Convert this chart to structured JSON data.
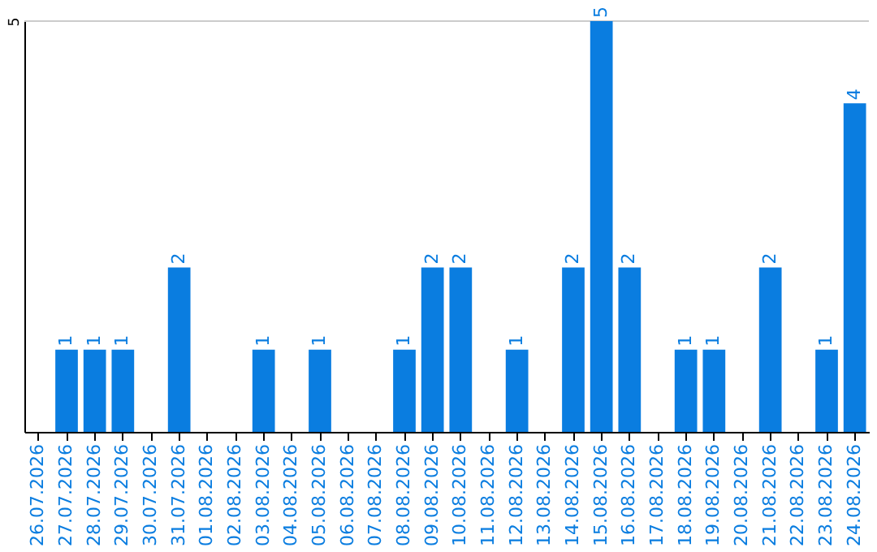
{
  "chart_data": {
    "type": "bar",
    "categories": [
      "26.07.2026",
      "27.07.2026",
      "28.07.2026",
      "29.07.2026",
      "30.07.2026",
      "31.07.2026",
      "01.08.2026",
      "02.08.2026",
      "03.08.2026",
      "04.08.2026",
      "05.08.2026",
      "06.08.2026",
      "07.08.2026",
      "08.08.2026",
      "09.08.2026",
      "10.08.2026",
      "11.08.2026",
      "12.08.2026",
      "13.08.2026",
      "14.08.2026",
      "15.08.2026",
      "16.08.2026",
      "17.08.2026",
      "18.08.2026",
      "19.08.2026",
      "20.08.2026",
      "21.08.2026",
      "22.08.2026",
      "23.08.2026",
      "24.08.2026"
    ],
    "values": [
      0,
      1,
      1,
      1,
      0,
      2,
      0,
      0,
      1,
      0,
      1,
      0,
      0,
      1,
      2,
      2,
      0,
      1,
      0,
      2,
      5,
      2,
      0,
      1,
      1,
      0,
      2,
      0,
      1,
      4
    ],
    "value_labels": [
      null,
      "1",
      "1",
      "1",
      null,
      "2",
      null,
      null,
      "1",
      null,
      "1",
      null,
      null,
      "1",
      "2",
      "2",
      null,
      "1",
      null,
      "2",
      "5",
      "2",
      null,
      "1",
      "1",
      null,
      "2",
      null,
      "1",
      "4"
    ],
    "color": "#0a7de0",
    "ylim": [
      0,
      5
    ],
    "yticks": [
      5
    ],
    "ref_lines": [
      {
        "axis": "y",
        "value": 5,
        "color": "#cccccc"
      }
    ]
  }
}
